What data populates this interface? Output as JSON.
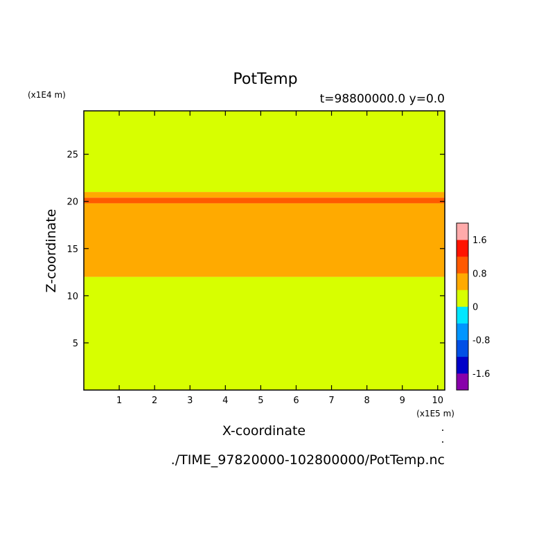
{
  "chart_data": {
    "type": "heatmap",
    "title": "PotTemp",
    "subtitle": "t=98800000.0 y=0.0",
    "xlabel": "X-coordinate",
    "ylabel": "Z-coordinate",
    "x_unit": "(x1E5 m)",
    "y_unit": "(x1E4 m)",
    "xlim": [
      0,
      10.2
    ],
    "ylim": [
      0,
      29.6
    ],
    "x_ticks": [
      1,
      2,
      3,
      4,
      5,
      6,
      7,
      8,
      9,
      10
    ],
    "y_ticks": [
      5,
      10,
      15,
      20,
      25
    ],
    "footer": "./TIME_97820000-102800000/PotTemp.nc",
    "colorbar": {
      "levels": [
        -2.0,
        -1.6,
        -1.2,
        -0.8,
        -0.4,
        0.0,
        0.4,
        0.8,
        1.2,
        1.6,
        2.0
      ],
      "colors": [
        "#8800aa",
        "#0000c8",
        "#0050e6",
        "#0096ff",
        "#00e6ff",
        "#d7ff00",
        "#ffaa00",
        "#ff5a00",
        "#ff1400",
        "#ffaaaa"
      ],
      "tick_labels": [
        "-1.6",
        "-0.8",
        "0",
        "0.8",
        "1.6"
      ],
      "tick_values": [
        -1.6,
        -0.8,
        0.0,
        0.8,
        1.6
      ]
    },
    "layers": [
      {
        "z_min": 0.0,
        "z_max": 12.0,
        "value_range": "0 to 0.4"
      },
      {
        "z_min": 12.0,
        "z_max": 19.8,
        "value_range": "0.4 to 0.8"
      },
      {
        "z_min": 19.8,
        "z_max": 20.4,
        "value_range": "0.8 to 1.2"
      },
      {
        "z_min": 20.4,
        "z_max": 21.0,
        "value_range": "0.4 to 0.8"
      },
      {
        "z_min": 21.0,
        "z_max": 29.6,
        "value_range": "0 to 0.4"
      }
    ]
  }
}
